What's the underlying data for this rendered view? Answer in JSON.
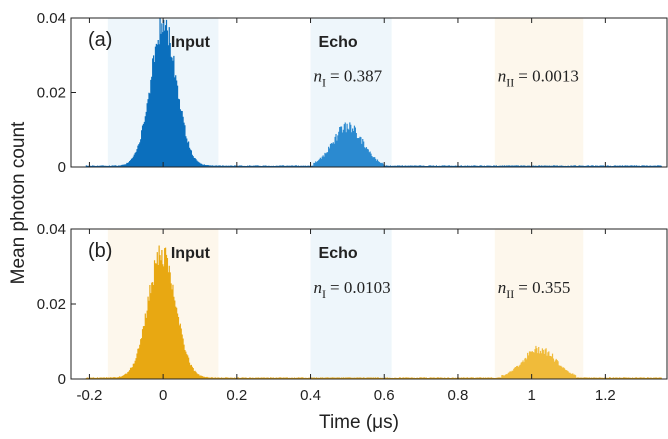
{
  "chart_data": {
    "type": "bar",
    "xlabel": "Time (μs)",
    "ylabel": "Mean photon count",
    "xlim": [
      -0.25,
      1.37
    ],
    "ylim": [
      0,
      0.04
    ],
    "xticks": [
      -0.2,
      0,
      0.2,
      0.4,
      0.6,
      0.8,
      1,
      1.2
    ],
    "xtick_labels": [
      "-0.2",
      "0",
      "0.2",
      "0.4",
      "0.6",
      "0.8",
      "1",
      "1.2"
    ],
    "yticks": [
      0,
      0.02,
      0.04
    ],
    "ytick_labels": [
      "0",
      "0.02",
      "0.04"
    ],
    "panels": [
      {
        "label": "(a)",
        "color": "#0b6fbd",
        "echo_color": "#2b8ad0",
        "regions": [
          {
            "x": [
              -0.15,
              0.15
            ],
            "color": "#eef6fb",
            "label": "Input"
          },
          {
            "x": [
              0.4,
              0.62
            ],
            "color": "#eef6fb",
            "label": "Echo"
          },
          {
            "x": [
              0.9,
              1.14
            ],
            "color": "#fdf7ec",
            "label": ""
          }
        ],
        "annotations": [
          {
            "var": "n",
            "sub": "I",
            "value": "= 0.387",
            "x": 0.4,
            "y": 0.0245
          },
          {
            "var": "n",
            "sub": "II",
            "value": "= 0.0013",
            "x": 0.9,
            "y": 0.0245
          }
        ],
        "pulses": [
          {
            "center": 0.0,
            "sigma": 0.035,
            "amp": 0.038
          },
          {
            "center": 0.5,
            "sigma": 0.04,
            "amp": 0.0105
          }
        ]
      },
      {
        "label": "(b)",
        "color": "#e8a812",
        "echo_color": "#f0bb3a",
        "regions": [
          {
            "x": [
              -0.15,
              0.15
            ],
            "color": "#fdf7ec",
            "label": "Input"
          },
          {
            "x": [
              0.4,
              0.62
            ],
            "color": "#eef6fb",
            "label": "Echo"
          },
          {
            "x": [
              0.9,
              1.14
            ],
            "color": "#fdf7ec",
            "label": ""
          }
        ],
        "annotations": [
          {
            "var": "n",
            "sub": "I",
            "value": "= 0.0103",
            "x": 0.4,
            "y": 0.0245
          },
          {
            "var": "n",
            "sub": "II",
            "value": "= 0.355",
            "x": 0.9,
            "y": 0.0245
          }
        ],
        "pulses": [
          {
            "center": -0.005,
            "sigma": 0.037,
            "amp": 0.033
          },
          {
            "center": 1.02,
            "sigma": 0.045,
            "amp": 0.0075
          }
        ]
      }
    ]
  }
}
